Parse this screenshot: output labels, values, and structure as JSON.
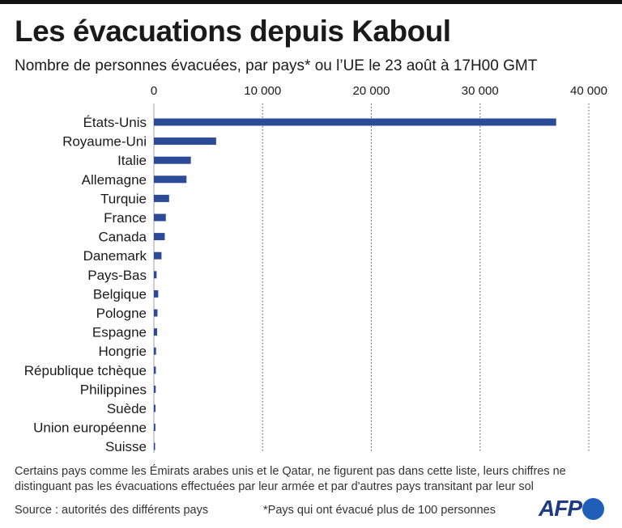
{
  "title": "Les évacuations depuis Kaboul",
  "subtitle": "Nombre de personnes évacuées, par pays* ou l’UE le 23 août à 17H00 GMT",
  "footnote": "Certains pays comme les Émirats arabes unis et le Qatar, ne figurent pas dans cette liste, leurs chiffres ne distinguant pas les évacuations effectuées par leur armée et par d'autres pays transitant par leur sol",
  "source": "Source : autorités des différents pays",
  "note": "*Pays qui ont évacué plus de 100 personnes",
  "logo": {
    "text": "AFP"
  },
  "colors": {
    "bar": "#2b4a97",
    "grid": "#555555",
    "logo_text": "#1f3b85",
    "logo_dot": "#1f5fb8"
  },
  "chart_data": {
    "type": "bar",
    "orientation": "horizontal",
    "categories": [
      "États-Unis",
      "Royaume-Uni",
      "Italie",
      "Allemagne",
      "Turquie",
      "France",
      "Canada",
      "Danemark",
      "Pays-Bas",
      "Belgique",
      "Pologne",
      "Espagne",
      "Hongrie",
      "République tchèque",
      "Philippines",
      "Suède",
      "Union européenne",
      "Suisse"
    ],
    "values": [
      37000,
      5725,
      3400,
      3000,
      1400,
      1100,
      1000,
      700,
      250,
      400,
      330,
      300,
      200,
      180,
      170,
      150,
      140,
      110
    ],
    "xlim": [
      0,
      40000
    ],
    "ticks": [
      0,
      10000,
      20000,
      30000,
      40000
    ],
    "tick_labels": [
      "0",
      "10 000",
      "20 000",
      "30 000",
      "40 000"
    ],
    "tick_position": "top",
    "grid": true,
    "legend": "none"
  }
}
